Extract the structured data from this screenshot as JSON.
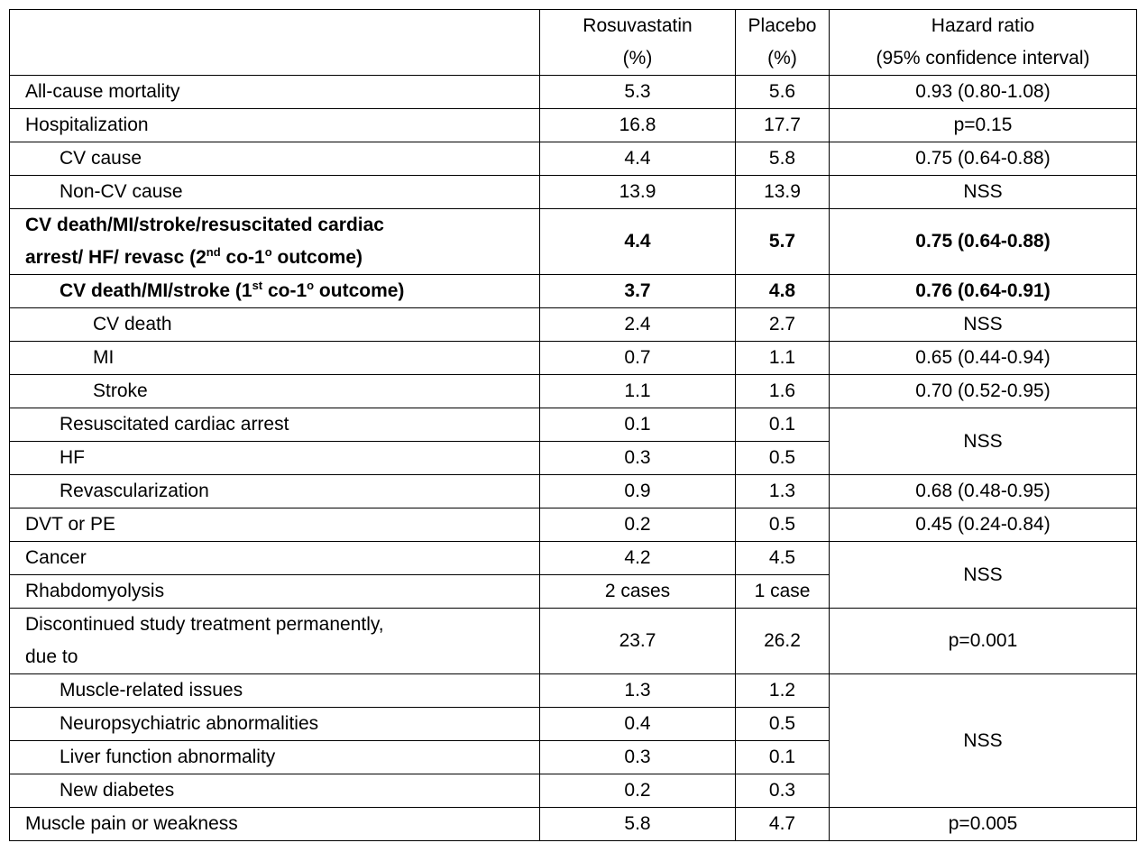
{
  "table": {
    "header": {
      "col0": "",
      "col1": [
        "Rosuvastatin",
        "(%)"
      ],
      "col2": [
        "Placebo",
        "(%)"
      ],
      "col3": [
        "Hazard ratio",
        "(95% confidence interval)"
      ]
    },
    "rows": [
      {
        "label": "All-cause mortality",
        "rosu": "5.3",
        "placebo": "5.6",
        "hr": "0.93 (0.80-1.08)"
      },
      {
        "label": "Hospitalization",
        "rosu": "16.8",
        "placebo": "17.7",
        "hr": "p=0.15"
      },
      {
        "label": "CV cause",
        "rosu": "4.4",
        "placebo": "5.8",
        "hr": "0.75 (0.64-0.88)"
      },
      {
        "label": "Non-CV cause",
        "rosu": "13.9",
        "placebo": "13.9",
        "hr": "NSS"
      },
      {
        "label_a": "CV death/MI/stroke/resuscitated cardiac",
        "label_b": "arrest/ HF/ revasc (2",
        "label_sup1": "nd",
        "label_c": " co-1",
        "label_sup2": "o",
        "label_d": " outcome)",
        "rosu": "4.4",
        "placebo": "5.7",
        "hr": "0.75 (0.64-0.88)"
      },
      {
        "label_a": "CV death/MI/stroke (1",
        "label_sup1": "st",
        "label_b": " co-1",
        "label_sup2": "o",
        "label_c": " outcome)",
        "rosu": "3.7",
        "placebo": "4.8",
        "hr": "0.76 (0.64-0.91)"
      },
      {
        "label": "CV death",
        "rosu": "2.4",
        "placebo": "2.7",
        "hr": "NSS"
      },
      {
        "label": "MI",
        "rosu": "0.7",
        "placebo": "1.1",
        "hr": "0.65 (0.44-0.94)"
      },
      {
        "label": "Stroke",
        "rosu": "1.1",
        "placebo": "1.6",
        "hr": "0.70 (0.52-0.95)"
      },
      {
        "label": "Resuscitated cardiac arrest",
        "rosu": "0.1",
        "placebo": "0.1",
        "hr": "NSS"
      },
      {
        "label": "HF",
        "rosu": "0.3",
        "placebo": "0.5"
      },
      {
        "label": "Revascularization",
        "rosu": "0.9",
        "placebo": "1.3",
        "hr": "0.68 (0.48-0.95)"
      },
      {
        "label": "DVT or PE",
        "rosu": "0.2",
        "placebo": "0.5",
        "hr": "0.45 (0.24-0.84)"
      },
      {
        "label": "Cancer",
        "rosu": "4.2",
        "placebo": "4.5",
        "hr": "NSS"
      },
      {
        "label": "Rhabdomyolysis",
        "rosu": "2 cases",
        "placebo": "1 case"
      },
      {
        "label_a": "Discontinued study treatment permanently,",
        "label_b": "due to",
        "rosu": "23.7",
        "placebo": "26.2",
        "hr": "p=0.001"
      },
      {
        "label": "Muscle-related issues",
        "rosu": "1.3",
        "placebo": "1.2",
        "hr": "NSS"
      },
      {
        "label": "Neuropsychiatric abnormalities",
        "rosu": "0.4",
        "placebo": "0.5"
      },
      {
        "label": "Liver function abnormality",
        "rosu": "0.3",
        "placebo": "0.1"
      },
      {
        "label": "New diabetes",
        "rosu": "0.2",
        "placebo": "0.3"
      },
      {
        "label": "Muscle pain or weakness",
        "rosu": "5.8",
        "placebo": "4.7",
        "hr": "p=0.005"
      }
    ]
  }
}
